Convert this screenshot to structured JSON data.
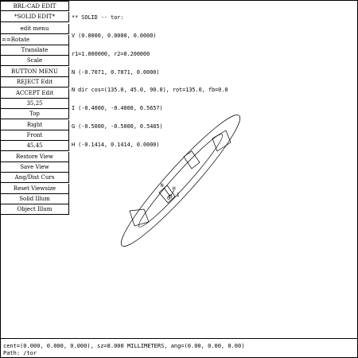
{
  "menu": {
    "items": [
      {
        "label": "BRL-CAD EDIT"
      },
      {
        "label": "*SOLID EDIT*"
      },
      {
        "label": "edit menu"
      },
      {
        "label": "==Rotate"
      },
      {
        "label": "Translate"
      },
      {
        "label": "Scale"
      },
      {
        "label": "BUTTON MENU"
      },
      {
        "label": "REJECT Edit"
      },
      {
        "label": "ACCEPT Edit"
      },
      {
        "label": "35,25"
      },
      {
        "label": "Top"
      },
      {
        "label": "Right"
      },
      {
        "label": "Front"
      },
      {
        "label": "45,45"
      },
      {
        "label": "Restore View"
      },
      {
        "label": "Save View"
      },
      {
        "label": "Ang/Dist Curs"
      },
      {
        "label": "Reset Viewsize"
      },
      {
        "label": "Solid Illum"
      },
      {
        "label": "Object Illum"
      }
    ]
  },
  "info": {
    "lines": [
      "** SOLID -- tor:",
      "V (0.0000, 0.0000, 0.0000)",
      "r1=1.000000, r2=0.200000",
      "N (-0.7071, 0.7071, 0.0000)",
      "N dir cos=(135.0, 45.0, 90.0), rot=135.0, fb=0.0",
      "I (-0.4000, -0.4000, 0.5657)",
      "G (-0.5000, -0.5000, 0.5485)",
      "H (-0.1414, 0.1414, 0.0000)"
    ]
  },
  "view": {
    "labels": [
      "N",
      "G",
      "H",
      "I"
    ]
  },
  "status": {
    "line1": "cent=(0.000, 0.000, 0.000), sz=8.000 MILLIMETERS, ang=(0.00, 0.00, 0.00)",
    "line2": "Path: /tor"
  }
}
